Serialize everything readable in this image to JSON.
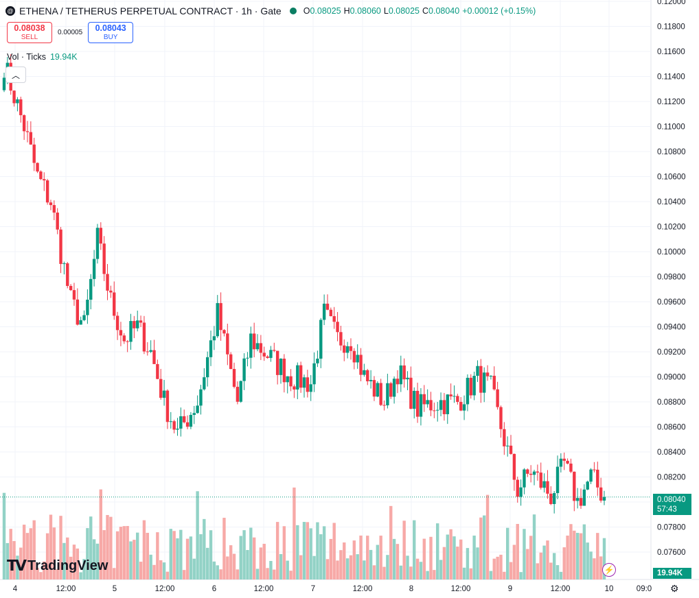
{
  "header": {
    "symbol": "ETHENA / TETHERUS PERPETUAL CONTRACT · 1h · Gate",
    "exchange_logo": "@",
    "ohlc": {
      "o_label": "O",
      "o": "0.08025",
      "h_label": "H",
      "h": "0.08060",
      "l_label": "L",
      "l": "0.08025",
      "c_label": "C",
      "c": "0.08040",
      "change": "+0.00012 (+0.15%)"
    }
  },
  "trade": {
    "sell_price": "0.08038",
    "sell_label": "SELL",
    "spread": "0.00005",
    "buy_price": "0.08043",
    "buy_label": "BUY"
  },
  "volume_legend": {
    "label": "Vol · Ticks",
    "value": "19.94K"
  },
  "brand": {
    "name": "TradingView"
  },
  "price_tag": {
    "price": "0.08040",
    "countdown": "57:43"
  },
  "volume_tag": "19.94K",
  "colors": {
    "up": "#089981",
    "down": "#f23645",
    "up_vol": "#92d2c6",
    "down_vol": "#f7a9a7"
  },
  "icons": [
    "exchange-logo-icon",
    "market-status-dot-icon",
    "collapse-chevron-icon",
    "tradingview-logo-icon",
    "flash-icon",
    "settings-icon"
  ],
  "chart_data": {
    "type": "candlestick",
    "interval": "1h",
    "ylim": [
      0.075,
      0.12
    ],
    "y_ticks": [
      "0.12000",
      "0.11800",
      "0.11600",
      "0.11400",
      "0.11200",
      "0.11000",
      "0.10800",
      "0.10600",
      "0.10400",
      "0.10200",
      "0.10000",
      "0.09800",
      "0.09600",
      "0.09400",
      "0.09200",
      "0.09000",
      "0.08800",
      "0.08600",
      "0.08400",
      "0.08200",
      "0.08000",
      "0.07800",
      "0.07600"
    ],
    "x_ticks": [
      "4",
      "12:00",
      "5",
      "12:00",
      "6",
      "12:00",
      "7",
      "12:00",
      "8",
      "12:00",
      "9",
      "12:00",
      "10",
      "09:0"
    ],
    "waypoints": [
      {
        "i": 0,
        "p": 0.115
      },
      {
        "i": 6,
        "p": 0.11
      },
      {
        "i": 10,
        "p": 0.106
      },
      {
        "i": 14,
        "p": 0.104
      },
      {
        "i": 20,
        "p": 0.096
      },
      {
        "i": 24,
        "p": 0.094
      },
      {
        "i": 28,
        "p": 0.101
      },
      {
        "i": 32,
        "p": 0.096
      },
      {
        "i": 36,
        "p": 0.093
      },
      {
        "i": 40,
        "p": 0.094
      },
      {
        "i": 44,
        "p": 0.092
      },
      {
        "i": 48,
        "p": 0.088
      },
      {
        "i": 52,
        "p": 0.0855
      },
      {
        "i": 58,
        "p": 0.088
      },
      {
        "i": 64,
        "p": 0.095
      },
      {
        "i": 70,
        "p": 0.088
      },
      {
        "i": 74,
        "p": 0.093
      },
      {
        "i": 80,
        "p": 0.0915
      },
      {
        "i": 86,
        "p": 0.09
      },
      {
        "i": 92,
        "p": 0.0895
      },
      {
        "i": 96,
        "p": 0.095
      },
      {
        "i": 100,
        "p": 0.093
      },
      {
        "i": 104,
        "p": 0.093
      },
      {
        "i": 108,
        "p": 0.09
      },
      {
        "i": 114,
        "p": 0.088
      },
      {
        "i": 118,
        "p": 0.0905
      },
      {
        "i": 124,
        "p": 0.0875
      },
      {
        "i": 130,
        "p": 0.088
      },
      {
        "i": 136,
        "p": 0.088
      },
      {
        "i": 142,
        "p": 0.09
      },
      {
        "i": 146,
        "p": 0.089
      },
      {
        "i": 150,
        "p": 0.085
      },
      {
        "i": 154,
        "p": 0.081
      },
      {
        "i": 158,
        "p": 0.0825
      },
      {
        "i": 164,
        "p": 0.0805
      },
      {
        "i": 168,
        "p": 0.083
      },
      {
        "i": 172,
        "p": 0.08
      },
      {
        "i": 176,
        "p": 0.082
      },
      {
        "i": 180,
        "p": 0.0804
      }
    ],
    "candle_count": 181,
    "last_close": 0.0804
  }
}
